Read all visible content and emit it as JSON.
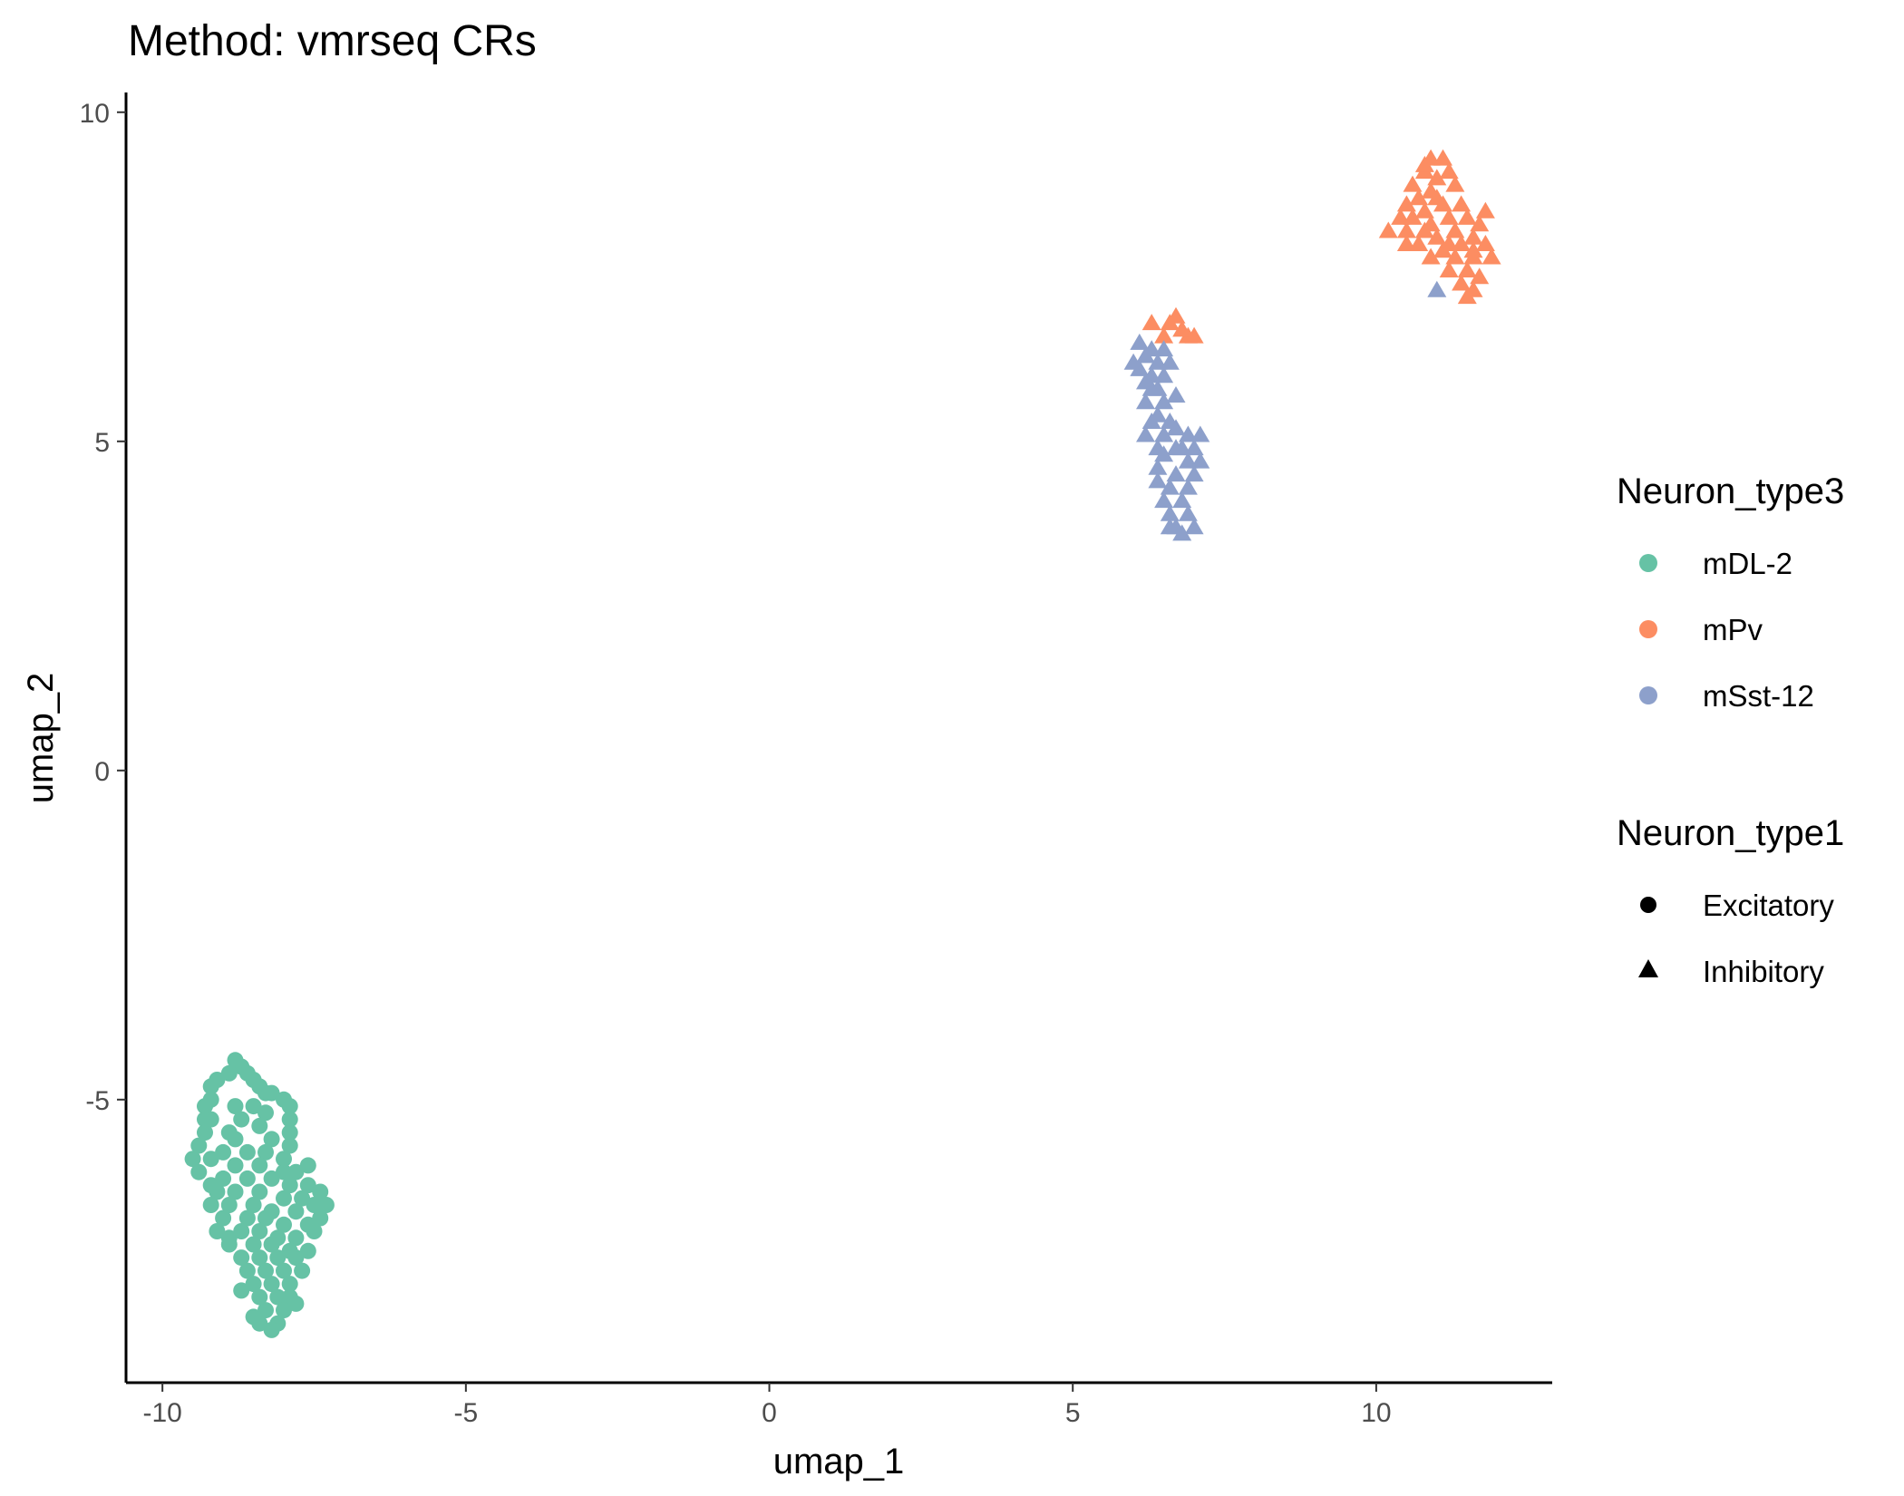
{
  "chart_data": {
    "type": "scatter",
    "title": "Method: vmrseq CRs",
    "xlabel": "umap_1",
    "ylabel": "umap_2",
    "xlim": [
      -10.6,
      12.9
    ],
    "ylim": [
      -9.3,
      10.3
    ],
    "x_ticks": [
      -10,
      -5,
      0,
      5,
      10
    ],
    "y_ticks": [
      -5,
      0,
      5,
      10
    ],
    "x_tick_labels": [
      "-10",
      "-5",
      "0",
      "5",
      "10"
    ],
    "y_tick_labels": [
      "-5",
      "0",
      "5",
      "10"
    ],
    "grid": false,
    "legend_position": "right",
    "color_legend": {
      "title": "Neuron_type3",
      "entries": [
        {
          "label": "mDL-2",
          "color": "#66c2a5"
        },
        {
          "label": "mPv",
          "color": "#fc8d62"
        },
        {
          "label": "mSst-12",
          "color": "#8da0cb"
        }
      ]
    },
    "shape_legend": {
      "title": "Neuron_type1",
      "entries": [
        {
          "label": "Excitatory",
          "shape": "circle"
        },
        {
          "label": "Inhibitory",
          "shape": "triangle"
        }
      ]
    },
    "series": [
      {
        "name": "mDL-2",
        "shape": "circle",
        "color": "#66c2a5",
        "points": [
          [
            -8.8,
            -4.4
          ],
          [
            -8.7,
            -4.5
          ],
          [
            -8.9,
            -4.6
          ],
          [
            -8.6,
            -4.6
          ],
          [
            -8.5,
            -4.7
          ],
          [
            -9.1,
            -4.7
          ],
          [
            -9.2,
            -4.8
          ],
          [
            -8.4,
            -4.8
          ],
          [
            -8.3,
            -4.9
          ],
          [
            -8.2,
            -4.9
          ],
          [
            -9.2,
            -5.0
          ],
          [
            -8.0,
            -5.0
          ],
          [
            -8.8,
            -5.1
          ],
          [
            -8.5,
            -5.1
          ],
          [
            -7.9,
            -5.1
          ],
          [
            -9.3,
            -5.1
          ],
          [
            -9.2,
            -5.3
          ],
          [
            -8.7,
            -5.3
          ],
          [
            -8.3,
            -5.2
          ],
          [
            -7.9,
            -5.3
          ],
          [
            -8.9,
            -5.5
          ],
          [
            -8.4,
            -5.4
          ],
          [
            -7.9,
            -5.5
          ],
          [
            -9.3,
            -5.5
          ],
          [
            -8.8,
            -5.6
          ],
          [
            -8.2,
            -5.6
          ],
          [
            -7.9,
            -5.7
          ],
          [
            -9.4,
            -5.7
          ],
          [
            -9.0,
            -5.8
          ],
          [
            -8.6,
            -5.8
          ],
          [
            -8.3,
            -5.8
          ],
          [
            -8.0,
            -5.9
          ],
          [
            -9.2,
            -5.9
          ],
          [
            -8.8,
            -6.0
          ],
          [
            -8.4,
            -6.0
          ],
          [
            -8.0,
            -6.1
          ],
          [
            -7.6,
            -6.0
          ],
          [
            -7.8,
            -6.1
          ],
          [
            -9.4,
            -6.1
          ],
          [
            -9.0,
            -6.2
          ],
          [
            -8.6,
            -6.2
          ],
          [
            -8.2,
            -6.2
          ],
          [
            -7.9,
            -6.3
          ],
          [
            -7.6,
            -6.3
          ],
          [
            -7.4,
            -6.4
          ],
          [
            -9.1,
            -6.4
          ],
          [
            -8.8,
            -6.4
          ],
          [
            -8.4,
            -6.4
          ],
          [
            -8.0,
            -6.5
          ],
          [
            -7.7,
            -6.5
          ],
          [
            -9.2,
            -6.6
          ],
          [
            -8.9,
            -6.6
          ],
          [
            -8.5,
            -6.6
          ],
          [
            -8.2,
            -6.7
          ],
          [
            -7.8,
            -6.7
          ],
          [
            -7.5,
            -6.6
          ],
          [
            -7.3,
            -6.6
          ],
          [
            -9.0,
            -6.8
          ],
          [
            -8.6,
            -6.8
          ],
          [
            -8.3,
            -6.8
          ],
          [
            -8.0,
            -6.9
          ],
          [
            -7.6,
            -6.9
          ],
          [
            -7.4,
            -6.8
          ],
          [
            -9.1,
            -7.0
          ],
          [
            -8.7,
            -7.0
          ],
          [
            -8.4,
            -7.0
          ],
          [
            -8.1,
            -7.1
          ],
          [
            -7.8,
            -7.1
          ],
          [
            -7.5,
            -7.0
          ],
          [
            -8.9,
            -7.2
          ],
          [
            -8.5,
            -7.2
          ],
          [
            -8.2,
            -7.2
          ],
          [
            -7.9,
            -7.3
          ],
          [
            -7.6,
            -7.3
          ],
          [
            -8.7,
            -7.4
          ],
          [
            -8.4,
            -7.4
          ],
          [
            -8.1,
            -7.4
          ],
          [
            -7.8,
            -7.4
          ],
          [
            -8.6,
            -7.6
          ],
          [
            -8.3,
            -7.6
          ],
          [
            -8.0,
            -7.6
          ],
          [
            -7.7,
            -7.6
          ],
          [
            -8.5,
            -7.8
          ],
          [
            -8.2,
            -7.8
          ],
          [
            -7.9,
            -7.8
          ],
          [
            -8.4,
            -8.0
          ],
          [
            -8.1,
            -8.0
          ],
          [
            -7.9,
            -8.0
          ],
          [
            -8.3,
            -8.2
          ],
          [
            -8.0,
            -8.2
          ],
          [
            -8.4,
            -8.4
          ],
          [
            -8.1,
            -8.4
          ],
          [
            -8.2,
            -8.5
          ],
          [
            -8.5,
            -8.3
          ],
          [
            -7.8,
            -8.1
          ],
          [
            -8.7,
            -7.9
          ],
          [
            -8.9,
            -7.1
          ],
          [
            -9.2,
            -6.3
          ],
          [
            -9.5,
            -5.9
          ],
          [
            -9.3,
            -5.3
          ]
        ]
      },
      {
        "name": "mPv",
        "shape": "triangle",
        "color": "#fc8d62",
        "points": [
          [
            10.9,
            9.3
          ],
          [
            11.1,
            9.3
          ],
          [
            10.8,
            9.1
          ],
          [
            11.2,
            9.1
          ],
          [
            11.0,
            9.0
          ],
          [
            10.6,
            8.9
          ],
          [
            10.9,
            8.8
          ],
          [
            11.3,
            8.9
          ],
          [
            10.7,
            8.7
          ],
          [
            11.1,
            8.6
          ],
          [
            10.5,
            8.6
          ],
          [
            11.4,
            8.6
          ],
          [
            10.8,
            8.5
          ],
          [
            11.2,
            8.4
          ],
          [
            10.6,
            8.4
          ],
          [
            11.5,
            8.4
          ],
          [
            10.9,
            8.3
          ],
          [
            11.3,
            8.2
          ],
          [
            10.5,
            8.2
          ],
          [
            11.7,
            8.3
          ],
          [
            11.0,
            8.1
          ],
          [
            10.7,
            8.0
          ],
          [
            11.4,
            8.0
          ],
          [
            10.2,
            8.2
          ],
          [
            11.6,
            8.1
          ],
          [
            11.1,
            7.9
          ],
          [
            10.5,
            8.0
          ],
          [
            11.8,
            8.0
          ],
          [
            11.3,
            7.8
          ],
          [
            10.9,
            7.8
          ],
          [
            11.6,
            7.8
          ],
          [
            11.9,
            7.8
          ],
          [
            11.2,
            7.6
          ],
          [
            11.5,
            7.6
          ],
          [
            11.7,
            7.5
          ],
          [
            11.4,
            7.4
          ],
          [
            11.6,
            7.3
          ],
          [
            11.5,
            7.2
          ],
          [
            10.8,
            9.2
          ],
          [
            11.0,
            8.7
          ],
          [
            10.4,
            8.4
          ],
          [
            11.8,
            8.5
          ],
          [
            11.2,
            8.0
          ],
          [
            10.8,
            8.2
          ],
          [
            11.6,
            7.9
          ],
          [
            6.3,
            6.8
          ],
          [
            6.7,
            6.9
          ],
          [
            6.5,
            6.6
          ],
          [
            6.9,
            6.6
          ],
          [
            6.8,
            6.7
          ],
          [
            7.0,
            6.6
          ],
          [
            6.6,
            6.8
          ]
        ]
      },
      {
        "name": "mSst-12",
        "shape": "triangle",
        "color": "#8da0cb",
        "points": [
          [
            6.1,
            6.5
          ],
          [
            6.3,
            6.4
          ],
          [
            6.5,
            6.4
          ],
          [
            6.2,
            6.3
          ],
          [
            6.4,
            6.2
          ],
          [
            6.0,
            6.2
          ],
          [
            6.6,
            6.2
          ],
          [
            6.3,
            6.0
          ],
          [
            6.5,
            6.0
          ],
          [
            6.1,
            6.1
          ],
          [
            6.2,
            5.9
          ],
          [
            6.4,
            5.8
          ],
          [
            6.7,
            5.7
          ],
          [
            6.5,
            5.6
          ],
          [
            6.2,
            5.6
          ],
          [
            6.4,
            5.4
          ],
          [
            6.3,
            5.3
          ],
          [
            6.6,
            5.3
          ],
          [
            6.2,
            5.1
          ],
          [
            6.5,
            5.1
          ],
          [
            6.7,
            5.2
          ],
          [
            6.9,
            5.1
          ],
          [
            7.1,
            5.1
          ],
          [
            6.4,
            4.9
          ],
          [
            6.7,
            4.9
          ],
          [
            7.0,
            4.9
          ],
          [
            6.5,
            4.8
          ],
          [
            6.9,
            4.7
          ],
          [
            7.1,
            4.7
          ],
          [
            6.4,
            4.6
          ],
          [
            6.7,
            4.5
          ],
          [
            7.0,
            4.5
          ],
          [
            6.6,
            4.3
          ],
          [
            6.9,
            4.3
          ],
          [
            6.5,
            4.1
          ],
          [
            6.8,
            4.1
          ],
          [
            6.6,
            3.9
          ],
          [
            6.9,
            3.9
          ],
          [
            6.7,
            3.7
          ],
          [
            7.0,
            3.7
          ],
          [
            6.8,
            3.6
          ],
          [
            6.6,
            3.7
          ],
          [
            6.3,
            5.8
          ],
          [
            6.8,
            4.9
          ],
          [
            6.4,
            4.4
          ],
          [
            11.0,
            7.3
          ]
        ]
      }
    ]
  }
}
